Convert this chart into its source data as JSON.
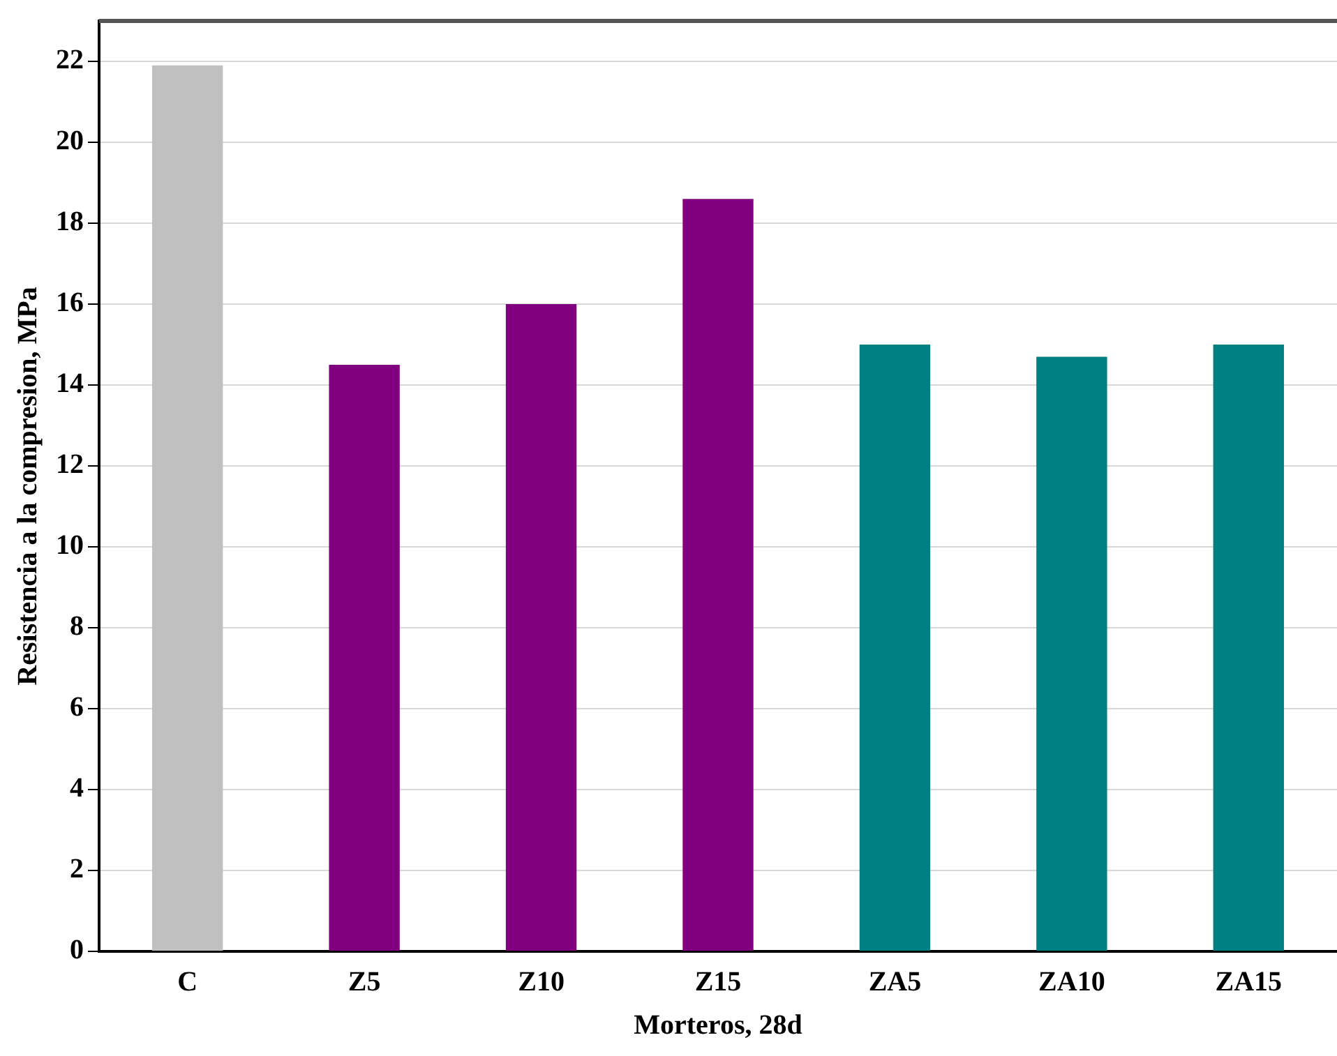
{
  "chart_data": {
    "type": "bar",
    "xlabel": "Morteros, 28d",
    "ylabel": "Resistencia a la compresion, MPa",
    "categories": [
      "C",
      "Z5",
      "Z10",
      "Z15",
      "ZA5",
      "ZA10",
      "ZA15"
    ],
    "values": [
      21.9,
      14.5,
      16.0,
      18.6,
      15.0,
      14.7,
      15.0
    ],
    "colors": [
      "#c0c0c0",
      "#800080",
      "#800080",
      "#800080",
      "#008080",
      "#008080",
      "#008080"
    ],
    "ylim": [
      0,
      23
    ],
    "yticks": [
      0,
      2,
      4,
      6,
      8,
      10,
      12,
      14,
      16,
      18,
      20,
      22
    ],
    "grid": "y",
    "legend": false
  }
}
